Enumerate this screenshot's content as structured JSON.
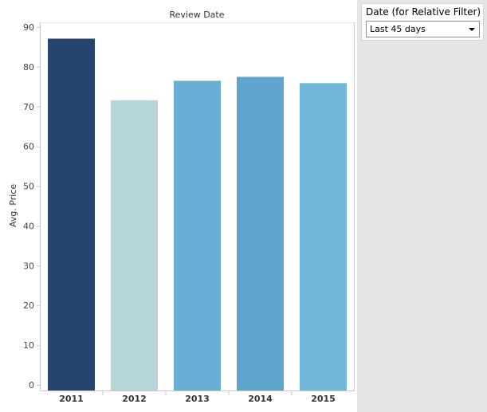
{
  "filter": {
    "title": "Date (for Relative Filter)",
    "selected_value": "Last 45 days",
    "icon": "chevron-down-icon"
  },
  "chart_data": {
    "type": "bar",
    "title": "Review Date",
    "xlabel": "",
    "ylabel": "Avg. Price",
    "categories": [
      "2011",
      "2012",
      "2013",
      "2014",
      "2015"
    ],
    "values": [
      87.1,
      71.6,
      76.5,
      77.5,
      75.9
    ],
    "colors": [
      "#26456e",
      "#b5d5db",
      "#6aaed6",
      "#5ea6cf",
      "#71b7da"
    ],
    "ylim": [
      0,
      90
    ],
    "yticks": [
      0,
      10,
      20,
      30,
      40,
      50,
      60,
      70,
      80,
      90
    ],
    "grid": false,
    "legend": "none"
  }
}
